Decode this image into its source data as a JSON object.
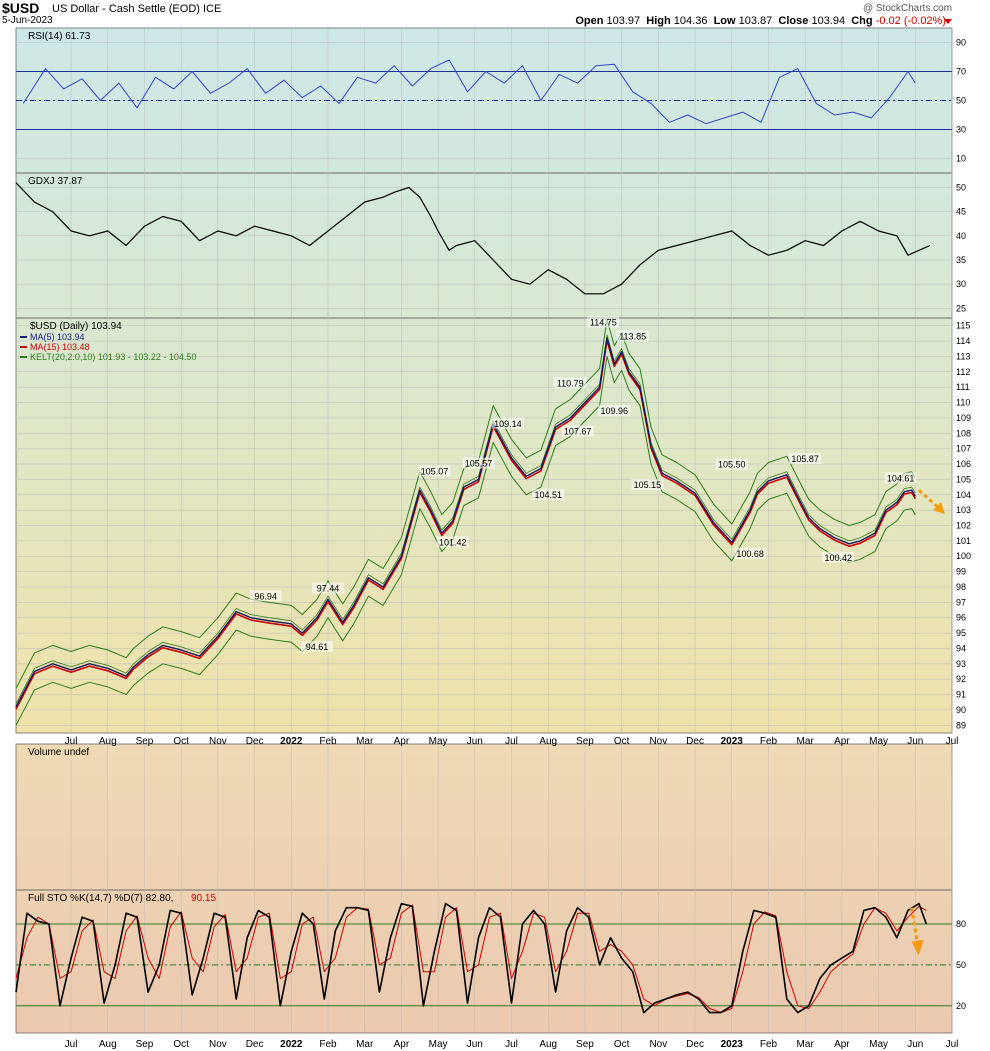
{
  "header": {
    "symbol": "$USD",
    "name": "US Dollar - Cash Settle (EOD) ICE",
    "date": "5-Jun-2023",
    "copyright": "@ StockCharts.com",
    "open_label": "Open",
    "open": "103.97",
    "high_label": "High",
    "high": "104.36",
    "low_label": "Low",
    "low": "103.87",
    "close_label": "Close",
    "close": "103.94",
    "chg_label": "Chg",
    "chg": "-0.02 (-0.02%)"
  },
  "x_axis": {
    "months": [
      {
        "label": "Jul",
        "i": 1.5
      },
      {
        "label": "Aug",
        "i": 2.5
      },
      {
        "label": "Sep",
        "i": 3.5
      },
      {
        "label": "Oct",
        "i": 4.5
      },
      {
        "label": "Nov",
        "i": 5.5
      },
      {
        "label": "Dec",
        "i": 6.5
      },
      {
        "label": "2022",
        "i": 7.5,
        "bold": true
      },
      {
        "label": "Feb",
        "i": 8.5
      },
      {
        "label": "Mar",
        "i": 9.5
      },
      {
        "label": "Apr",
        "i": 10.5
      },
      {
        "label": "May",
        "i": 11.5
      },
      {
        "label": "Jun",
        "i": 12.5
      },
      {
        "label": "Jul",
        "i": 13.5
      },
      {
        "label": "Aug",
        "i": 14.5
      },
      {
        "label": "Sep",
        "i": 15.5
      },
      {
        "label": "Oct",
        "i": 16.5
      },
      {
        "label": "Nov",
        "i": 17.5
      },
      {
        "label": "Dec",
        "i": 18.5
      },
      {
        "label": "2023",
        "i": 19.5,
        "bold": true
      },
      {
        "label": "Feb",
        "i": 20.5
      },
      {
        "label": "Mar",
        "i": 21.5
      },
      {
        "label": "Apr",
        "i": 22.5
      },
      {
        "label": "May",
        "i": 23.5
      },
      {
        "label": "Jun",
        "i": 24.5
      },
      {
        "label": "Jul",
        "i": 25.5
      }
    ]
  },
  "chart_data": [
    {
      "type": "line",
      "panel": "rsi",
      "title": "RSI(14) 61.73",
      "ylim": [
        0,
        100
      ],
      "yticks": [
        10,
        30,
        50,
        70,
        90
      ],
      "reference_lines": [
        30,
        50,
        70
      ],
      "series": [
        {
          "x": [
            0.2,
            0.8,
            1.3,
            1.8,
            2.3,
            2.8,
            3.3,
            3.8,
            4.3,
            4.8,
            5.3,
            5.8,
            6.3,
            6.8,
            7.3,
            7.8,
            8.3,
            8.8,
            9.3,
            9.8,
            10.3,
            10.8,
            11.3,
            11.8,
            12.3,
            12.8,
            13.3,
            13.8,
            14.3,
            14.8,
            15.3,
            15.8,
            16.3,
            16.8,
            17.3,
            17.8,
            18.3,
            18.8,
            19.3,
            19.8,
            20.3,
            20.8,
            21.3,
            21.8,
            22.3,
            22.8,
            23.3,
            23.8,
            24.3,
            24.5
          ],
          "y": [
            48,
            72,
            58,
            65,
            50,
            62,
            45,
            66,
            58,
            70,
            55,
            62,
            72,
            55,
            64,
            52,
            60,
            48,
            66,
            62,
            74,
            60,
            72,
            78,
            56,
            70,
            62,
            74,
            50,
            68,
            62,
            74,
            75,
            56,
            48,
            35,
            40,
            34,
            38,
            42,
            35,
            66,
            72,
            48,
            40,
            42,
            38,
            52,
            70,
            62
          ]
        }
      ]
    },
    {
      "type": "line",
      "panel": "gdxj",
      "title": "GDXJ 37.87",
      "ylim": [
        23,
        53
      ],
      "yticks": [
        25,
        30,
        35,
        40,
        45,
        50
      ],
      "series": [
        {
          "name": "GDXJ",
          "x": [
            0,
            0.5,
            1,
            1.5,
            2,
            2.5,
            3,
            3.5,
            4,
            4.5,
            5,
            5.5,
            6,
            6.5,
            7,
            7.5,
            8,
            8.5,
            9,
            9.5,
            10,
            10.3,
            10.7,
            11,
            11.3,
            11.5,
            11.8,
            12,
            12.5,
            13,
            13.5,
            14,
            14.5,
            15,
            15.5,
            16,
            16.5,
            17,
            17.5,
            18,
            18.5,
            19,
            19.5,
            20,
            20.5,
            21,
            21.5,
            22,
            22.5,
            23,
            23.5,
            24,
            24.3,
            24.6,
            24.9
          ],
          "y": [
            51,
            47,
            45,
            41,
            40,
            41,
            38,
            42,
            44,
            43,
            39,
            41,
            40,
            42,
            41,
            40,
            38,
            41,
            44,
            47,
            48,
            49,
            50,
            48,
            44,
            41,
            37,
            38,
            39,
            35,
            31,
            30,
            33,
            31,
            28,
            28,
            30,
            34,
            37,
            38,
            39,
            40,
            41,
            38,
            36,
            37,
            39,
            38,
            41,
            43,
            41,
            40,
            36,
            37,
            38
          ]
        }
      ]
    },
    {
      "type": "line",
      "panel": "price",
      "title": "$USD (Daily) 103.94",
      "legend": [
        {
          "name": "MA(5) 103.94",
          "color": "#1a1a80"
        },
        {
          "name": "MA(15) 103.48",
          "color": "#cc0000"
        },
        {
          "name": "KELT(20,2.0,10) 101.93 - 103.22 - 104.50",
          "color": "#2e7d1e"
        }
      ],
      "ylim": [
        88.5,
        115.5
      ],
      "yticks": [
        89,
        90,
        91,
        92,
        93,
        94,
        95,
        96,
        97,
        98,
        99,
        100,
        101,
        102,
        103,
        104,
        105,
        106,
        107,
        108,
        109,
        110,
        111,
        112,
        113,
        114,
        115
      ],
      "series": [
        {
          "name": "$USD",
          "x": [
            0,
            0.5,
            1,
            1.5,
            2,
            2.5,
            3,
            3.2,
            3.6,
            4,
            4.5,
            5,
            5.5,
            6,
            6.4,
            6.9,
            7.5,
            7.8,
            8.2,
            8.5,
            8.9,
            9.2,
            9.6,
            10,
            10.5,
            11,
            11.3,
            11.6,
            11.9,
            12.2,
            12.6,
            13,
            13.5,
            13.9,
            14.3,
            14.7,
            15.1,
            15.5,
            15.9,
            16.1,
            16.3,
            16.5,
            16.7,
            17,
            17.3,
            17.6,
            18,
            18.5,
            19,
            19.5,
            20,
            20.2,
            20.5,
            21,
            21.4,
            21.6,
            21.9,
            22.3,
            22.7,
            23,
            23.4,
            23.7,
            24,
            24.2,
            24.4,
            24.5
          ],
          "y": [
            90.2,
            92.5,
            93.0,
            92.6,
            93.0,
            92.7,
            92.2,
            92.8,
            93.6,
            94.2,
            93.9,
            93.5,
            94.8,
            96.4,
            96.0,
            95.8,
            95.6,
            95.0,
            96.0,
            97.2,
            95.7,
            96.8,
            98.6,
            98.0,
            100.0,
            104.3,
            103.0,
            101.5,
            102.3,
            104.5,
            105.0,
            108.6,
            106.4,
            105.2,
            105.7,
            108.4,
            109.0,
            110.0,
            111.0,
            114.2,
            112.5,
            113.3,
            112.0,
            111.0,
            107.2,
            105.4,
            104.9,
            104.1,
            102.2,
            100.9,
            103.0,
            104.2,
            104.9,
            105.3,
            103.4,
            102.5,
            101.8,
            101.2,
            100.8,
            101.0,
            101.5,
            103.0,
            103.5,
            104.2,
            104.3,
            103.9
          ]
        }
      ],
      "annotations": [
        {
          "text": "96.94",
          "x": 6.8,
          "y": 96.94
        },
        {
          "text": "97.44",
          "x": 8.5,
          "y": 97.44
        },
        {
          "text": "94.61",
          "x": 8.2,
          "y": 94.61
        },
        {
          "text": "105.07",
          "x": 11.4,
          "y": 105.07
        },
        {
          "text": "101.42",
          "x": 11.9,
          "y": 101.42
        },
        {
          "text": "105.57",
          "x": 12.6,
          "y": 105.57
        },
        {
          "text": "109.14",
          "x": 13.4,
          "y": 109.14
        },
        {
          "text": "104.51",
          "x": 14.5,
          "y": 104.51
        },
        {
          "text": "107.67",
          "x": 15.3,
          "y": 107.67
        },
        {
          "text": "110.79",
          "x": 15.1,
          "y": 110.79
        },
        {
          "text": "109.96",
          "x": 16.3,
          "y": 109.96
        },
        {
          "text": "114.75",
          "x": 16.0,
          "y": 114.75
        },
        {
          "text": "113.85",
          "x": 16.8,
          "y": 113.85
        },
        {
          "text": "105.15",
          "x": 17.2,
          "y": 105.15
        },
        {
          "text": "105.50",
          "x": 19.5,
          "y": 105.5
        },
        {
          "text": "100.68",
          "x": 20.0,
          "y": 100.68
        },
        {
          "text": "105.87",
          "x": 21.5,
          "y": 105.87
        },
        {
          "text": "100.42",
          "x": 22.4,
          "y": 100.42
        },
        {
          "text": "104.61",
          "x": 24.1,
          "y": 104.61
        }
      ],
      "arrow_color": "#f39c12"
    },
    {
      "type": "area",
      "panel": "volume",
      "title": "Volume undef",
      "series": []
    },
    {
      "type": "line",
      "panel": "stochastic",
      "title_prefix": "Full STO %K(14,7) %D(7) 82.80,",
      "title_value": "90.15",
      "ylim": [
        0,
        105
      ],
      "yticks": [
        20,
        50,
        80
      ],
      "reference_lines": [
        20,
        50,
        80
      ],
      "series": [
        {
          "name": "%K",
          "color": "#000000",
          "x": [
            0,
            0.3,
            0.6,
            0.9,
            1.2,
            1.5,
            1.8,
            2.1,
            2.4,
            2.7,
            3.0,
            3.3,
            3.6,
            3.9,
            4.2,
            4.5,
            4.8,
            5.1,
            5.4,
            5.7,
            6.0,
            6.3,
            6.6,
            6.9,
            7.2,
            7.5,
            7.8,
            8.1,
            8.4,
            8.7,
            9.0,
            9.3,
            9.6,
            9.9,
            10.2,
            10.5,
            10.8,
            11.1,
            11.4,
            11.7,
            12.0,
            12.3,
            12.6,
            12.9,
            13.2,
            13.5,
            13.8,
            14.1,
            14.4,
            14.7,
            15.0,
            15.3,
            15.6,
            15.9,
            16.2,
            16.5,
            16.8,
            17.1,
            17.4,
            17.7,
            18.0,
            18.3,
            18.6,
            18.9,
            19.2,
            19.5,
            19.8,
            20.1,
            20.4,
            20.7,
            21.0,
            21.3,
            21.6,
            21.9,
            22.2,
            22.5,
            22.8,
            23.1,
            23.4,
            23.7,
            24.0,
            24.3,
            24.6,
            24.8
          ],
          "y": [
            30,
            88,
            82,
            80,
            20,
            55,
            85,
            82,
            22,
            50,
            88,
            85,
            30,
            50,
            90,
            88,
            28,
            55,
            88,
            85,
            25,
            70,
            90,
            85,
            20,
            60,
            88,
            80,
            25,
            75,
            92,
            92,
            90,
            30,
            70,
            95,
            93,
            20,
            60,
            95,
            90,
            22,
            70,
            92,
            85,
            22,
            80,
            90,
            80,
            30,
            75,
            92,
            85,
            50,
            70,
            55,
            45,
            15,
            22,
            25,
            28,
            30,
            25,
            15,
            15,
            20,
            60,
            90,
            88,
            85,
            25,
            15,
            20,
            40,
            50,
            55,
            60,
            90,
            92,
            85,
            70,
            90,
            95,
            80
          ]
        },
        {
          "name": "%D",
          "color": "#cc0000",
          "x": [
            0,
            0.3,
            0.6,
            0.9,
            1.2,
            1.5,
            1.8,
            2.1,
            2.4,
            2.7,
            3.0,
            3.3,
            3.6,
            3.9,
            4.2,
            4.5,
            4.8,
            5.1,
            5.4,
            5.7,
            6.0,
            6.3,
            6.6,
            6.9,
            7.2,
            7.5,
            7.8,
            8.1,
            8.4,
            8.7,
            9.0,
            9.3,
            9.6,
            9.9,
            10.2,
            10.5,
            10.8,
            11.1,
            11.4,
            11.7,
            12.0,
            12.3,
            12.6,
            12.9,
            13.2,
            13.5,
            13.8,
            14.1,
            14.4,
            14.7,
            15.0,
            15.3,
            15.6,
            15.9,
            16.2,
            16.5,
            16.8,
            17.1,
            17.4,
            17.7,
            18.0,
            18.3,
            18.6,
            18.9,
            19.2,
            19.5,
            19.8,
            20.1,
            20.4,
            20.7,
            21.0,
            21.3,
            21.6,
            21.9,
            22.2,
            22.5,
            22.8,
            23.1,
            23.4,
            23.7,
            24.0,
            24.3,
            24.6,
            24.8
          ],
          "y": [
            40,
            70,
            85,
            80,
            40,
            45,
            75,
            83,
            45,
            40,
            75,
            86,
            55,
            40,
            78,
            89,
            55,
            45,
            78,
            87,
            45,
            55,
            85,
            88,
            40,
            45,
            80,
            85,
            45,
            55,
            85,
            92,
            91,
            50,
            55,
            88,
            94,
            45,
            45,
            85,
            92,
            45,
            50,
            85,
            88,
            40,
            60,
            88,
            85,
            45,
            60,
            88,
            88,
            60,
            65,
            60,
            50,
            25,
            20,
            25,
            27,
            29,
            26,
            18,
            15,
            18,
            45,
            80,
            89,
            86,
            45,
            20,
            18,
            30,
            45,
            52,
            58,
            80,
            92,
            88,
            75,
            85,
            93,
            90
          ]
        }
      ]
    }
  ]
}
